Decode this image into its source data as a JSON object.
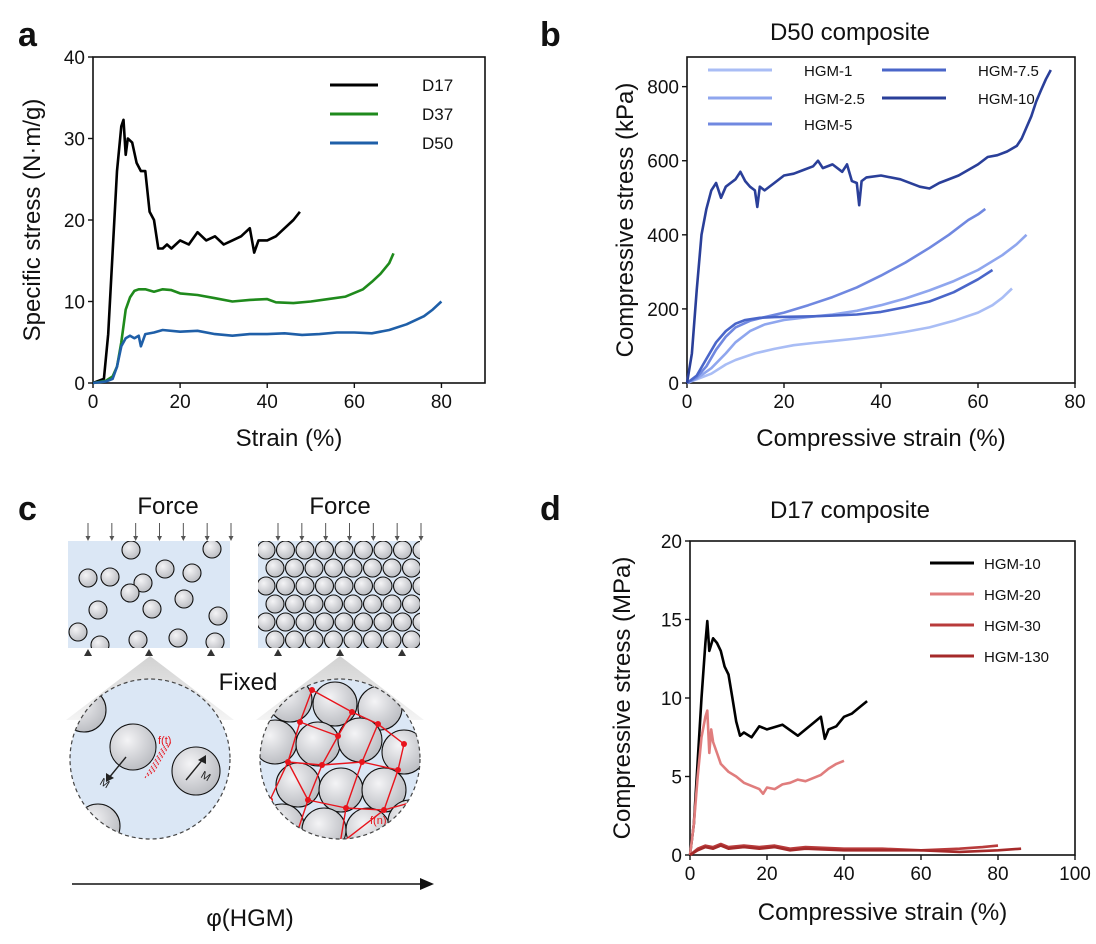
{
  "panels": {
    "a": {
      "letter": "a"
    },
    "b": {
      "letter": "b",
      "title": "D50 composite"
    },
    "c": {
      "letter": "c",
      "force_left": "Force",
      "force_right": "Force",
      "fixed": "Fixed",
      "xaxis": "φ(HGM)",
      "ft_label": "f(t)",
      "fn_label": "f(n)",
      "m_label": "M"
    },
    "d": {
      "letter": "d",
      "title": "D17 composite"
    }
  },
  "colors": {
    "axis": "#111111",
    "bubble": "#d3d4d8",
    "matrix": "#dbe7f5",
    "network": "#e8141c"
  },
  "chart_data": [
    {
      "panel": "a",
      "type": "line",
      "title": "",
      "xlabel": "Strain (%)",
      "ylabel": "Specific stress (N·m/g)",
      "xlim": [
        0,
        90
      ],
      "ylim": [
        0,
        40
      ],
      "xticks": [
        0,
        20,
        40,
        60,
        80
      ],
      "yticks": [
        0,
        10,
        20,
        30,
        40
      ],
      "legend_position": "top-right",
      "series": [
        {
          "name": "D17",
          "color": "#000000",
          "x": [
            0,
            2.5,
            3.5,
            4.5,
            5.5,
            6.5,
            7,
            7.5,
            8,
            9,
            10,
            11,
            12,
            13,
            14,
            15,
            16,
            17,
            18,
            20,
            22,
            24,
            26,
            28,
            30,
            32,
            34,
            36,
            37,
            38,
            40,
            42,
            44,
            46,
            47.5
          ],
          "y": [
            0,
            0.5,
            6,
            16,
            26,
            31.5,
            32.3,
            28,
            30,
            29.5,
            27,
            26,
            26,
            21,
            20,
            16.5,
            16.5,
            17,
            16.5,
            17.5,
            17,
            18.5,
            17.5,
            18,
            17,
            17.5,
            18,
            19,
            16,
            17.5,
            17.5,
            18,
            19,
            20,
            21
          ]
        },
        {
          "name": "D37",
          "color": "#1f8a1c",
          "x": [
            0,
            3,
            4.5,
            5.5,
            6.5,
            7.5,
            8.5,
            9.5,
            10.5,
            12,
            14,
            16,
            18,
            20,
            24,
            28,
            32,
            36,
            40,
            42,
            46,
            50,
            54,
            58,
            62,
            64,
            66,
            68,
            69
          ],
          "y": [
            0,
            0.3,
            0.8,
            2,
            5,
            9,
            10.5,
            11.3,
            11.5,
            11.5,
            11.2,
            11.5,
            11.4,
            11,
            10.8,
            10.4,
            10,
            10.2,
            10.3,
            9.9,
            9.8,
            10,
            10.3,
            10.6,
            11.5,
            12.4,
            13.4,
            14.7,
            15.9
          ]
        },
        {
          "name": "D50",
          "color": "#1f5fa8",
          "x": [
            0,
            3,
            4.5,
            5.5,
            6.5,
            7.5,
            8.5,
            9.5,
            10.5,
            11,
            12,
            14,
            16,
            20,
            24,
            28,
            32,
            36,
            40,
            44,
            48,
            52,
            56,
            60,
            64,
            68,
            72,
            76,
            78,
            80
          ],
          "y": [
            0,
            0.2,
            0.5,
            2,
            4.5,
            5.5,
            5.8,
            5.5,
            5.8,
            4.5,
            6,
            6.2,
            6.5,
            6.3,
            6.4,
            6,
            5.8,
            6,
            6,
            6.1,
            5.9,
            6,
            6.2,
            6.2,
            6.1,
            6.5,
            7.2,
            8.2,
            9,
            10
          ]
        }
      ]
    },
    {
      "panel": "b",
      "type": "line",
      "title": "D50 composite",
      "xlabel": "Compressive strain (%)",
      "ylabel": "Compressive stress (kPa)",
      "xlim": [
        0,
        80
      ],
      "ylim": [
        0,
        880
      ],
      "xticks": [
        0,
        20,
        40,
        60,
        80
      ],
      "yticks": [
        0,
        200,
        400,
        600,
        800
      ],
      "legend_position": "top",
      "series": [
        {
          "name": "HGM-1",
          "color": "#a9bdf5",
          "x": [
            0,
            2,
            5,
            8,
            10,
            14,
            18,
            22,
            26,
            30,
            35,
            40,
            45,
            50,
            55,
            60,
            63,
            65,
            67
          ],
          "y": [
            0,
            10,
            25,
            50,
            62,
            80,
            92,
            102,
            108,
            113,
            120,
            128,
            138,
            150,
            168,
            190,
            210,
            230,
            255
          ]
        },
        {
          "name": "HGM-2.5",
          "color": "#8fa6ee",
          "x": [
            0,
            2,
            5,
            8,
            10,
            13,
            16,
            20,
            25,
            30,
            35,
            40,
            45,
            50,
            55,
            60,
            65,
            68,
            70
          ],
          "y": [
            0,
            12,
            40,
            80,
            110,
            140,
            158,
            170,
            178,
            185,
            195,
            210,
            228,
            250,
            275,
            305,
            345,
            375,
            400
          ]
        },
        {
          "name": "HGM-5",
          "color": "#7088e0",
          "x": [
            0,
            2,
            4,
            6,
            8,
            10,
            13,
            16,
            20,
            25,
            30,
            35,
            40,
            45,
            50,
            54,
            58,
            60,
            61.5
          ],
          "y": [
            0,
            15,
            45,
            90,
            125,
            150,
            168,
            178,
            190,
            210,
            232,
            258,
            290,
            325,
            365,
            400,
            440,
            455,
            470
          ]
        },
        {
          "name": "HGM-7.5",
          "color": "#4a66c9",
          "x": [
            0,
            2,
            4,
            6,
            8,
            10,
            12,
            15,
            18,
            22,
            26,
            30,
            35,
            40,
            45,
            50,
            55,
            60,
            63
          ],
          "y": [
            0,
            20,
            65,
            110,
            140,
            160,
            170,
            176,
            178,
            179,
            180,
            182,
            185,
            192,
            205,
            220,
            245,
            280,
            305
          ]
        },
        {
          "name": "HGM-10",
          "color": "#2a3f99",
          "x": [
            0,
            1,
            2,
            3,
            4,
            5,
            6,
            7,
            8,
            9,
            10,
            11,
            12,
            13,
            14,
            14.5,
            15,
            16,
            18,
            20,
            22,
            24,
            26,
            27,
            28,
            30,
            32,
            33,
            34,
            35,
            35.5,
            36,
            37,
            40,
            44,
            48,
            50,
            52,
            56,
            60,
            62,
            64,
            66,
            68,
            69,
            70,
            71,
            72,
            73,
            74,
            75
          ],
          "y": [
            0,
            80,
            250,
            400,
            470,
            520,
            540,
            500,
            530,
            540,
            550,
            570,
            545,
            530,
            520,
            475,
            530,
            520,
            540,
            560,
            565,
            575,
            585,
            600,
            580,
            590,
            570,
            590,
            545,
            540,
            480,
            545,
            555,
            560,
            550,
            530,
            525,
            540,
            560,
            590,
            610,
            615,
            625,
            640,
            660,
            690,
            720,
            760,
            790,
            820,
            845
          ]
        }
      ]
    },
    {
      "panel": "d",
      "type": "line",
      "title": "D17 composite",
      "xlabel": "Compressive strain (%)",
      "ylabel": "Compressive stress (MPa)",
      "xlim": [
        0,
        100
      ],
      "ylim": [
        0,
        20
      ],
      "xticks": [
        0,
        20,
        40,
        60,
        80,
        100
      ],
      "yticks": [
        0,
        5,
        10,
        15,
        20
      ],
      "legend_position": "top-right",
      "series": [
        {
          "name": "HGM-10",
          "color": "#000000",
          "x": [
            0,
            1,
            2,
            3,
            4,
            4.5,
            5,
            6,
            7,
            8,
            9,
            10,
            11,
            12,
            13,
            14,
            16,
            18,
            20,
            24,
            28,
            32,
            34,
            35,
            36,
            38,
            40,
            42,
            44,
            46
          ],
          "y": [
            0,
            2,
            6,
            10,
            13.5,
            14.9,
            13,
            13.8,
            13.5,
            13,
            12,
            11.5,
            10,
            8.5,
            7.6,
            7.8,
            7.5,
            8.2,
            8,
            8.3,
            7.6,
            8.4,
            8.8,
            7.4,
            8,
            8.2,
            8.8,
            9,
            9.4,
            9.8
          ]
        },
        {
          "name": "HGM-20",
          "color": "#e07d7d",
          "x": [
            0,
            1,
            2,
            3,
            4,
            4.5,
            5,
            5.5,
            6,
            7,
            8,
            10,
            12,
            14,
            16,
            18,
            19,
            20,
            22,
            24,
            26,
            28,
            30,
            32,
            34,
            36,
            38,
            40
          ],
          "y": [
            0,
            2,
            5,
            7.5,
            8.8,
            9.2,
            6.5,
            8,
            7.2,
            6.5,
            5.8,
            5.3,
            5,
            4.6,
            4.4,
            4.2,
            3.9,
            4.3,
            4.2,
            4.5,
            4.6,
            4.8,
            4.7,
            4.9,
            5.1,
            5.5,
            5.8,
            6
          ]
        },
        {
          "name": "HGM-30",
          "color": "#b83b3b",
          "x": [
            0,
            2,
            4,
            6,
            8,
            10,
            14,
            18,
            22,
            26,
            30,
            40,
            50,
            60,
            70,
            76,
            80
          ],
          "y": [
            0,
            0.4,
            0.6,
            0.5,
            0.7,
            0.5,
            0.6,
            0.5,
            0.6,
            0.4,
            0.5,
            0.4,
            0.4,
            0.3,
            0.4,
            0.5,
            0.6
          ]
        },
        {
          "name": "HGM-130",
          "color": "#a52a2a",
          "x": [
            0,
            2,
            4,
            6,
            8,
            10,
            14,
            18,
            22,
            26,
            30,
            40,
            50,
            60,
            70,
            80,
            86
          ],
          "y": [
            0,
            0.3,
            0.5,
            0.4,
            0.6,
            0.4,
            0.5,
            0.4,
            0.5,
            0.3,
            0.4,
            0.3,
            0.3,
            0.3,
            0.2,
            0.3,
            0.4
          ]
        }
      ]
    }
  ]
}
